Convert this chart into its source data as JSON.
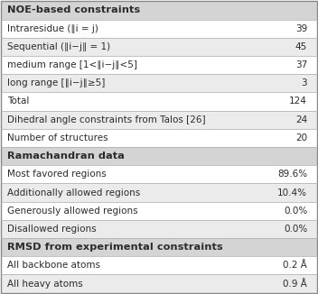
{
  "rows": [
    {
      "label": "NOE-based constraints",
      "value": "",
      "bold": true,
      "header": true,
      "bg": "#d4d4d4"
    },
    {
      "label": "Intraresidue (∥i = j)",
      "value": "39",
      "bold": false,
      "header": false,
      "bg": "#ffffff"
    },
    {
      "label": "Sequential (∥i−j∥ = 1)",
      "value": "45",
      "bold": false,
      "header": false,
      "bg": "#ebebeb"
    },
    {
      "label": "medium range [1<∥i−j∥<5]",
      "value": "37",
      "bold": false,
      "header": false,
      "bg": "#ffffff"
    },
    {
      "label": "long range [∥i−j∥≥5]",
      "value": "3",
      "bold": false,
      "header": false,
      "bg": "#ebebeb"
    },
    {
      "label": "Total",
      "value": "124",
      "bold": false,
      "header": false,
      "bg": "#ffffff"
    },
    {
      "label": "Dihedral angle constraints from Talos [26]",
      "value": "24",
      "bold": false,
      "header": false,
      "bg": "#ebebeb"
    },
    {
      "label": "Number of structures",
      "value": "20",
      "bold": false,
      "header": false,
      "bg": "#ffffff"
    },
    {
      "label": "Ramachandran data",
      "value": "",
      "bold": true,
      "header": true,
      "bg": "#d4d4d4"
    },
    {
      "label": "Most favored regions",
      "value": "89.6%",
      "bold": false,
      "header": false,
      "bg": "#ffffff"
    },
    {
      "label": "Additionally allowed regions",
      "value": "10.4%",
      "bold": false,
      "header": false,
      "bg": "#ebebeb"
    },
    {
      "label": "Generously allowed regions",
      "value": "0.0%",
      "bold": false,
      "header": false,
      "bg": "#ffffff"
    },
    {
      "label": "Disallowed regions",
      "value": "0.0%",
      "bold": false,
      "header": false,
      "bg": "#ebebeb"
    },
    {
      "label": "RMSD from experimental constraints",
      "value": "",
      "bold": true,
      "header": true,
      "bg": "#d4d4d4"
    },
    {
      "label": "All backbone atoms",
      "value": "0.2 Å",
      "bold": false,
      "header": false,
      "bg": "#ffffff"
    },
    {
      "label": "All heavy atoms",
      "value": "0.9 Å",
      "bold": false,
      "header": false,
      "bg": "#ebebeb"
    }
  ],
  "font_size": 7.5,
  "header_font_size": 8.2,
  "text_color": "#2b2b2b",
  "border_color": "#aaaaaa",
  "outer_border_color": "#888888"
}
